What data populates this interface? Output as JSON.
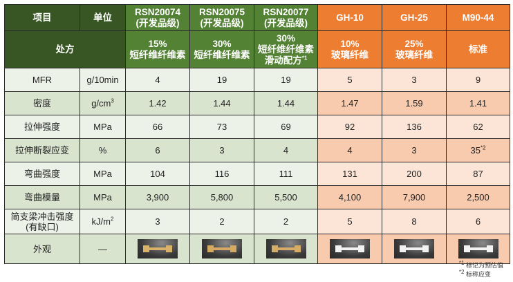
{
  "header": {
    "item": "项目",
    "unit": "单位",
    "formula": "处方",
    "products": [
      {
        "name": "RSN20074",
        "grade": "(开发品级)",
        "pct": "15%",
        "desc": "短纤维纤维素",
        "desc2": "",
        "group": "green"
      },
      {
        "name": "RSN20075",
        "grade": "(开发品级)",
        "pct": "30%",
        "desc": "短纤维纤维素",
        "desc2": "",
        "group": "green"
      },
      {
        "name": "RSN20077",
        "grade": "(开发品级)",
        "pct": "30%",
        "desc": "短纤维纤维素",
        "desc2": "滑动配方",
        "mark": "*1",
        "group": "green"
      },
      {
        "name": "GH-10",
        "grade": "",
        "pct": "10%",
        "desc": "玻璃纤维",
        "desc2": "",
        "group": "orange"
      },
      {
        "name": "GH-25",
        "grade": "",
        "pct": "25%",
        "desc": "玻璃纤维",
        "desc2": "",
        "group": "orange"
      },
      {
        "name": "M90-44",
        "grade": "",
        "pct": "",
        "desc": "标准",
        "desc2": "",
        "group": "orange"
      }
    ]
  },
  "rows": [
    {
      "label": "MFR",
      "unit": "g/10min",
      "values": [
        "4",
        "19",
        "19",
        "5",
        "3",
        "9"
      ]
    },
    {
      "label": "密度",
      "unit": "g/cm",
      "unit_sup": "3",
      "values": [
        "1.42",
        "1.44",
        "1.44",
        "1.47",
        "1.59",
        "1.41"
      ]
    },
    {
      "label": "拉伸强度",
      "unit": "MPa",
      "values": [
        "66",
        "73",
        "69",
        "92",
        "136",
        "62"
      ]
    },
    {
      "label": "拉伸断裂应变",
      "unit": "%",
      "values": [
        "6",
        "3",
        "4",
        "4",
        "3",
        "35"
      ],
      "value_marks": [
        "",
        "",
        "",
        "",
        "",
        "*2"
      ]
    },
    {
      "label": "弯曲强度",
      "unit": "MPa",
      "values": [
        "104",
        "116",
        "111",
        "131",
        "200",
        "87"
      ]
    },
    {
      "label": "弯曲模量",
      "unit": "MPa",
      "values": [
        "3,900",
        "5,800",
        "5,500",
        "4,100",
        "7,900",
        "2,500"
      ]
    },
    {
      "label": "简支梁冲击强度",
      "label2": "(有缺口)",
      "unit": "kJ/m",
      "unit_sup": "2",
      "values": [
        "3",
        "2",
        "2",
        "5",
        "8",
        "6"
      ]
    }
  ],
  "appearance": {
    "label": "外观",
    "unit": "—",
    "sample_colors": [
      "#d9b26a",
      "#d4aa62",
      "#d6ad66",
      "#f2f2f2",
      "#f2f2f2",
      "#f2f2f2"
    ]
  },
  "footnotes": [
    {
      "mark": "*1",
      "text": "标记为预估值"
    },
    {
      "mark": "*2",
      "text": "标称应变"
    }
  ],
  "colors": {
    "dark_green": "#375623",
    "green": "#548235",
    "orange": "#ed7d31"
  }
}
